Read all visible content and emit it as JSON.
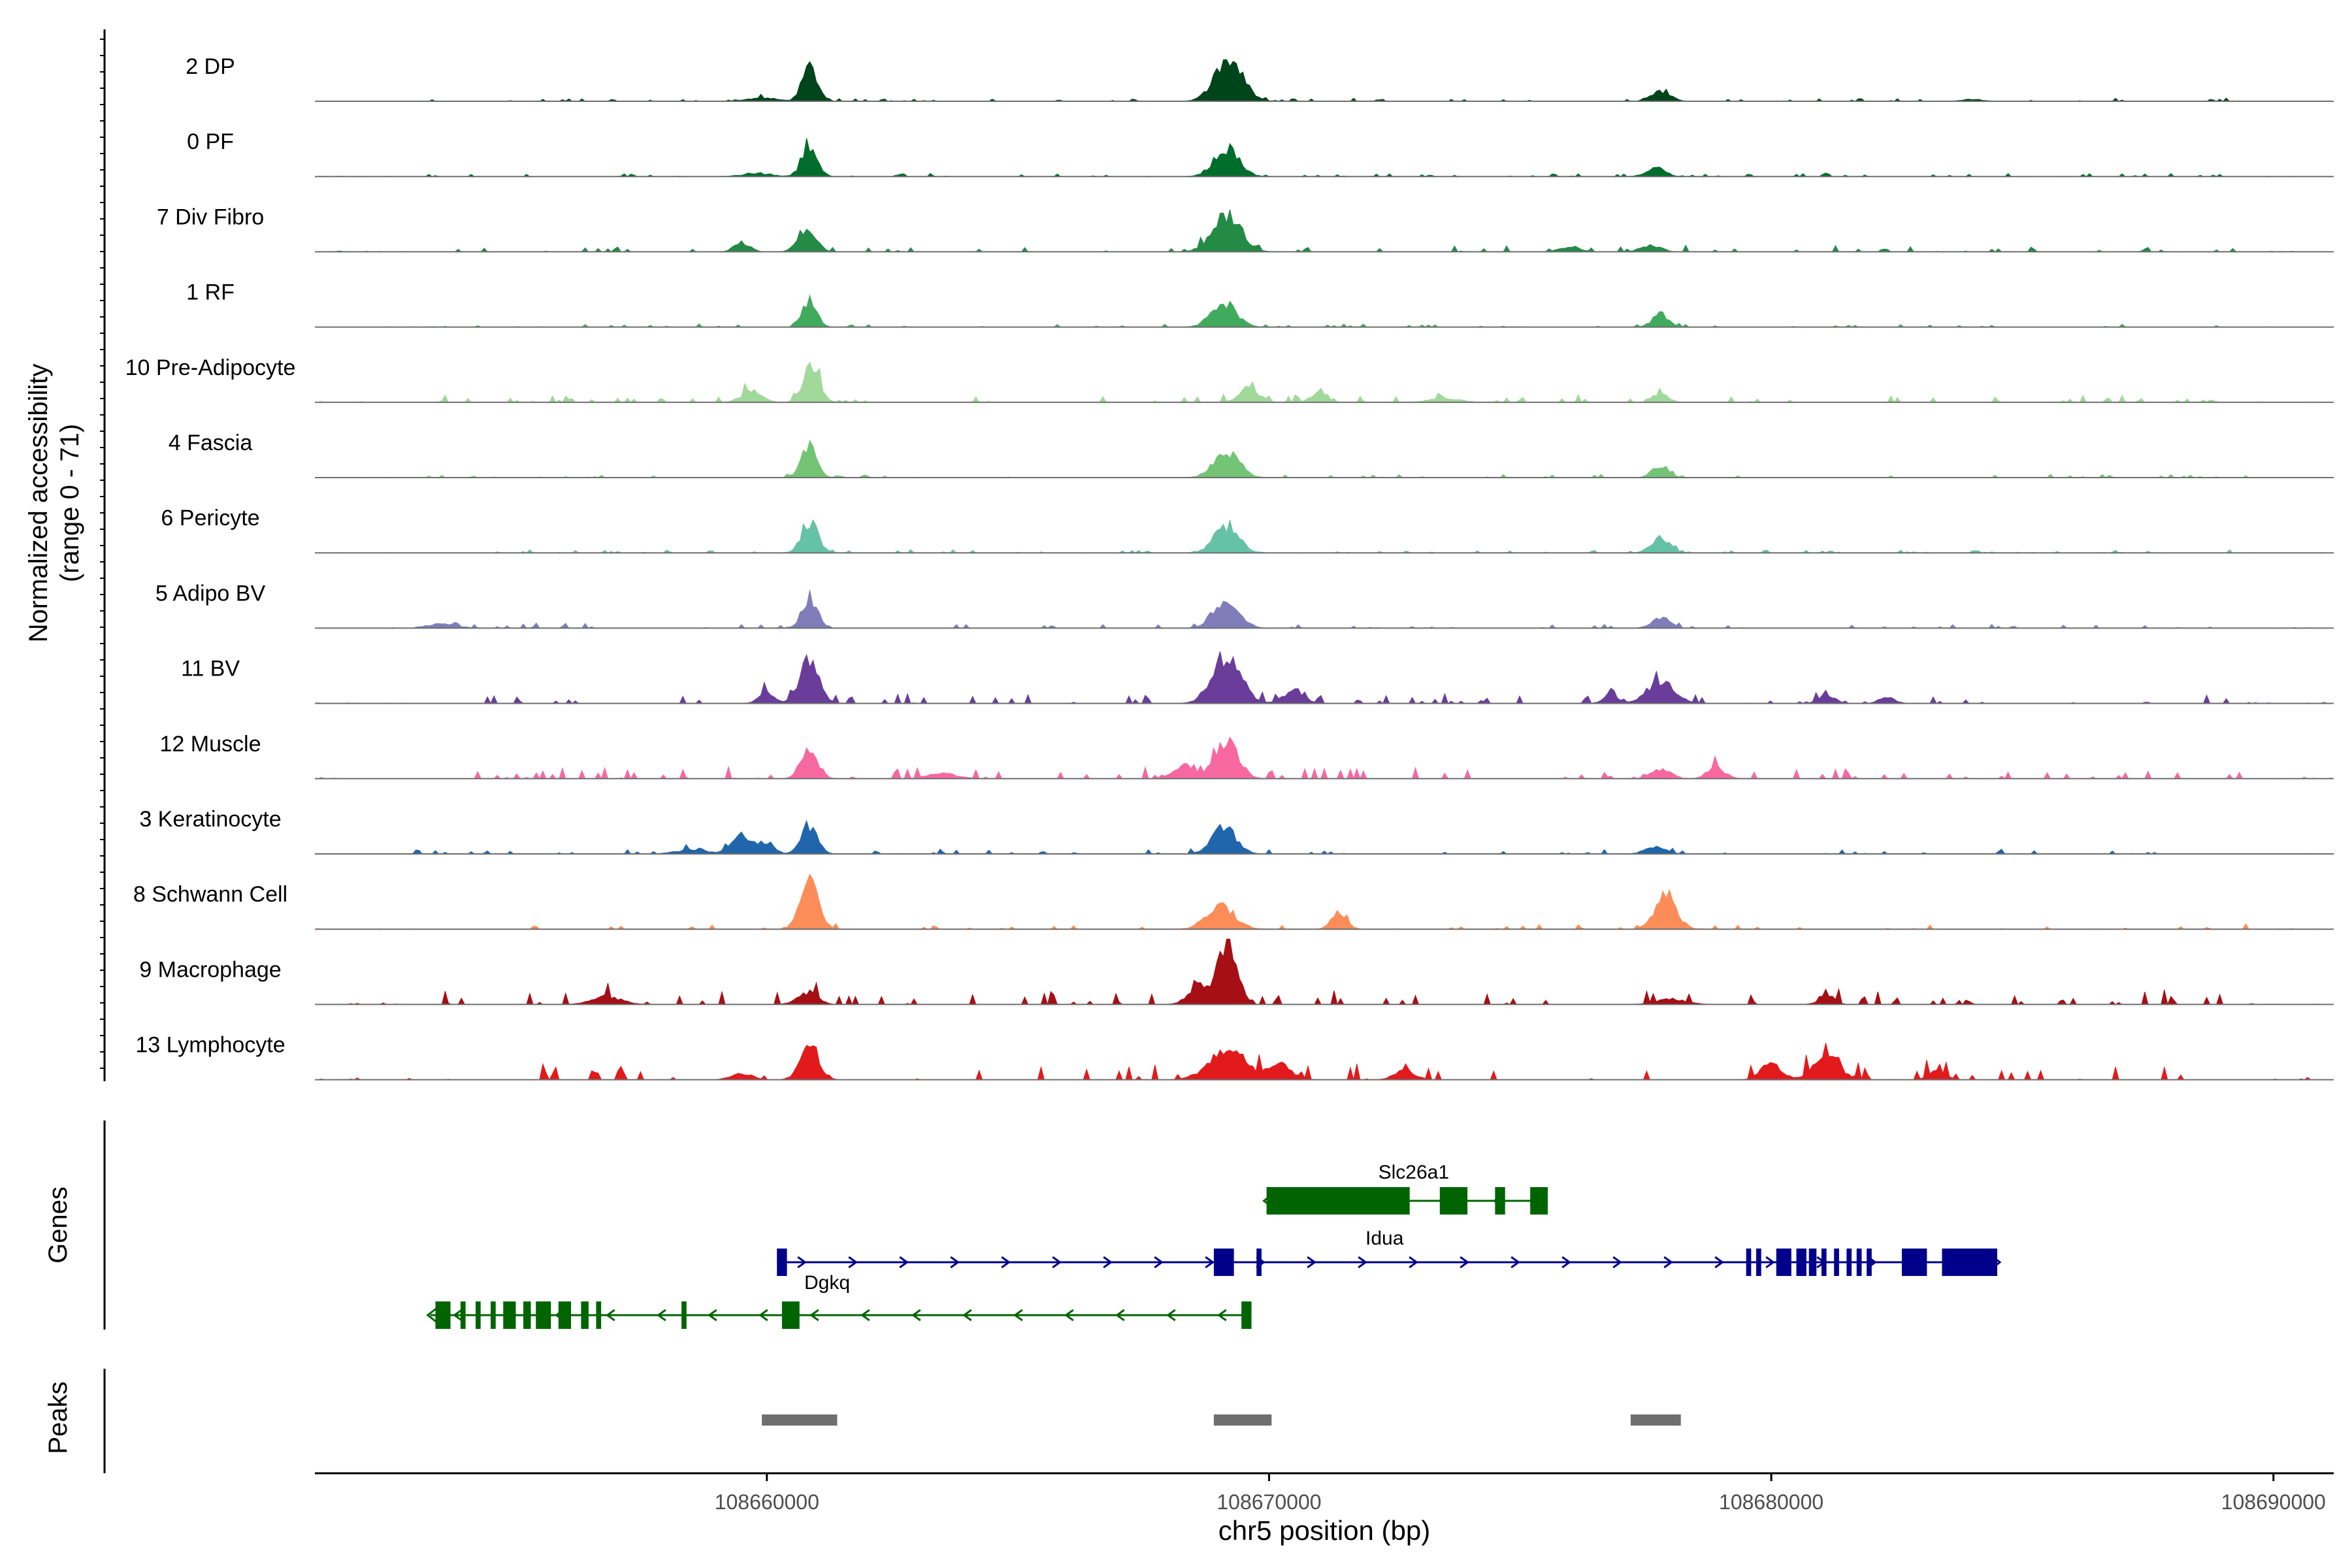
{
  "chart_data": {
    "type": "area",
    "title": "",
    "xlabel": "chr5 position (bp)",
    "ylabel_line1": "Normalized accessibility",
    "ylabel_line2": "(range 0 - 71)",
    "xlim": [
      108651000,
      108691200
    ],
    "ylim": [
      0,
      71
    ],
    "x_ticks": [
      108660000,
      108670000,
      108680000,
      108690000
    ],
    "x_tick_labels": [
      "108660000",
      "108670000",
      "108680000",
      "108690000"
    ],
    "panel_labels": {
      "genes": "Genes",
      "peaks": "Peaks"
    },
    "tracks": [
      {
        "name": "2 DP",
        "color": "#00441b",
        "peaks": [
          [
            108660860,
            52,
            150
          ],
          [
            108669200,
            60,
            280
          ],
          [
            108677800,
            16,
            180
          ],
          [
            108659900,
            5,
            300
          ],
          [
            108684000,
            3,
            200
          ]
        ],
        "noise": 2.0
      },
      {
        "name": "0 PF",
        "color": "#006d2c",
        "peaks": [
          [
            108660850,
            50,
            150
          ],
          [
            108669150,
            42,
            250
          ],
          [
            108677700,
            14,
            180
          ],
          [
            108659800,
            4,
            300
          ]
        ],
        "noise": 2.0
      },
      {
        "name": "7 Div Fibro",
        "color": "#238b45",
        "peaks": [
          [
            108660800,
            38,
            170
          ],
          [
            108669150,
            55,
            280
          ],
          [
            108659500,
            15,
            150
          ],
          [
            108677600,
            10,
            200
          ],
          [
            108676000,
            8,
            200
          ]
        ],
        "noise": 4.0
      },
      {
        "name": "1 RF",
        "color": "#41ab5d",
        "peaks": [
          [
            108660850,
            42,
            140
          ],
          [
            108669100,
            35,
            250
          ],
          [
            108677800,
            20,
            160
          ]
        ],
        "noise": 2.0
      },
      {
        "name": "10 Pre-Adipocyte",
        "color": "#a1d99b",
        "peaks": [
          [
            108660880,
            60,
            160
          ],
          [
            108669600,
            22,
            200
          ],
          [
            108671000,
            18,
            150
          ],
          [
            108659700,
            18,
            200
          ],
          [
            108677800,
            14,
            150
          ],
          [
            108673500,
            6,
            300
          ]
        ],
        "noise": 5.0
      },
      {
        "name": "4 Fascia",
        "color": "#74c476",
        "peaks": [
          [
            108660850,
            48,
            150
          ],
          [
            108669150,
            40,
            250
          ],
          [
            108677800,
            18,
            160
          ]
        ],
        "noise": 2.0
      },
      {
        "name": "6 Pericyte",
        "color": "#66c2a4",
        "peaks": [
          [
            108660850,
            50,
            160
          ],
          [
            108669150,
            38,
            250
          ],
          [
            108677800,
            22,
            180
          ]
        ],
        "noise": 2.0
      },
      {
        "name": "5 Adipo BV",
        "color": "#807dba",
        "peaks": [
          [
            108660850,
            48,
            150
          ],
          [
            108669150,
            45,
            250
          ],
          [
            108677800,
            14,
            180
          ],
          [
            108653500,
            6,
            300
          ]
        ],
        "noise": 3.0
      },
      {
        "name": "11 BV",
        "color": "#6a3d9a",
        "peaks": [
          [
            108660850,
            65,
            190
          ],
          [
            108669150,
            72,
            280
          ],
          [
            108677800,
            35,
            260
          ],
          [
            108660000,
            18,
            150
          ],
          [
            108670500,
            20,
            200
          ],
          [
            108681100,
            14,
            150
          ],
          [
            108676800,
            10,
            150
          ],
          [
            108682300,
            10,
            150
          ]
        ],
        "noise": 6.0
      },
      {
        "name": "12 Muscle",
        "color": "#f768a1",
        "peaks": [
          [
            108660850,
            48,
            160
          ],
          [
            108669150,
            60,
            230
          ],
          [
            108668300,
            20,
            200
          ],
          [
            108677800,
            14,
            200
          ],
          [
            108678900,
            16,
            180
          ],
          [
            108663500,
            8,
            300
          ]
        ],
        "noise": 7.0
      },
      {
        "name": "3 Keratinocyte",
        "color": "#2166ac",
        "peaks": [
          [
            108660850,
            44,
            160
          ],
          [
            108669100,
            40,
            240
          ],
          [
            108659500,
            28,
            200
          ],
          [
            108660000,
            18,
            150
          ],
          [
            108677700,
            12,
            200
          ],
          [
            108658500,
            6,
            300
          ]
        ],
        "noise": 3.0
      },
      {
        "name": "8 Schwann Cell",
        "color": "#fc8d59",
        "peaks": [
          [
            108660850,
            68,
            180
          ],
          [
            108669050,
            34,
            280
          ],
          [
            108677900,
            52,
            210
          ],
          [
            108671400,
            24,
            150
          ]
        ],
        "noise": 3.0
      },
      {
        "name": "9 Macrophage",
        "color": "#a50f15",
        "peaks": [
          [
            108669200,
            100,
            170
          ],
          [
            108668700,
            30,
            250
          ],
          [
            108660800,
            18,
            200
          ],
          [
            108681100,
            14,
            150
          ],
          [
            108656800,
            12,
            300
          ],
          [
            108678000,
            8,
            300
          ]
        ],
        "noise": 9.0
      },
      {
        "name": "13 Lymphocyte",
        "color": "#e31a1c",
        "peaks": [
          [
            108660850,
            55,
            180
          ],
          [
            108669150,
            45,
            350
          ],
          [
            108681100,
            36,
            260
          ],
          [
            108680000,
            24,
            200
          ],
          [
            108670200,
            22,
            250
          ],
          [
            108659500,
            10,
            200
          ],
          [
            108672700,
            14,
            200
          ],
          [
            108683300,
            16,
            150
          ]
        ],
        "noise": 10.0
      }
    ],
    "genes": [
      {
        "name": "Slc26a1",
        "color": "#006400",
        "strand": "-",
        "start": 108669950,
        "end": 108675550,
        "row": 0,
        "exons": [
          [
            108669950,
            108672800
          ],
          [
            108673400,
            108673950
          ],
          [
            108674500,
            108674700
          ],
          [
            108675200,
            108675550
          ]
        ]
      },
      {
        "name": "Idua",
        "color": "#00008b",
        "strand": "+",
        "start": 108660200,
        "end": 108684500,
        "row": 1,
        "exons": [
          [
            108660200,
            108660400
          ],
          [
            108668900,
            108669300
          ],
          [
            108669750,
            108669850
          ],
          [
            108679500,
            108679600
          ],
          [
            108679700,
            108679800
          ],
          [
            108680100,
            108680400
          ],
          [
            108680500,
            108680700
          ],
          [
            108680750,
            108680900
          ],
          [
            108681000,
            108681100
          ],
          [
            108681250,
            108681350
          ],
          [
            108681500,
            108681600
          ],
          [
            108681700,
            108681800
          ],
          [
            108681900,
            108682000
          ],
          [
            108682600,
            108683100
          ],
          [
            108683400,
            108684500
          ]
        ]
      },
      {
        "name": "Dgkq",
        "color": "#006400",
        "strand": "-",
        "start": 108653300,
        "end": 108669650,
        "row": 2,
        "exons": [
          [
            108653400,
            108653700
          ],
          [
            108653900,
            108654000
          ],
          [
            108654200,
            108654300
          ],
          [
            108654500,
            108654600
          ],
          [
            108654750,
            108655000
          ],
          [
            108655150,
            108655300
          ],
          [
            108655400,
            108655700
          ],
          [
            108655850,
            108656100
          ],
          [
            108656300,
            108656450
          ],
          [
            108656600,
            108656700
          ],
          [
            108658300,
            108658400
          ],
          [
            108660300,
            108660650
          ],
          [
            108669450,
            108669650
          ]
        ]
      }
    ],
    "peak_regions": [
      [
        108659900,
        108661400
      ],
      [
        108668900,
        108670050
      ],
      [
        108677200,
        108678200
      ]
    ]
  }
}
